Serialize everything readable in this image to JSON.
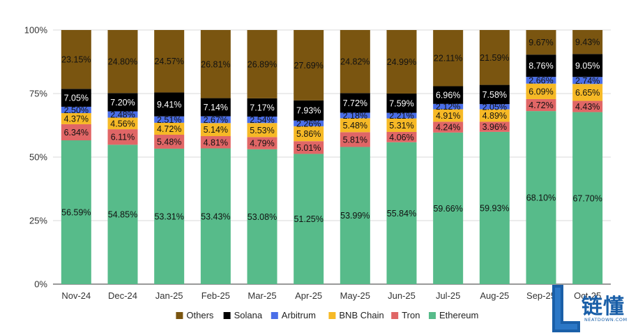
{
  "chart_data": {
    "type": "bar",
    "stacked": true,
    "title": "",
    "xlabel": "",
    "ylabel": "",
    "ylim": [
      0,
      100
    ],
    "y_ticks": [
      "0%",
      "25%",
      "50%",
      "75%",
      "100%"
    ],
    "grid": true,
    "legend_position": "bottom",
    "categories": [
      "Nov-24",
      "Dec-24",
      "Jan-25",
      "Feb-25",
      "Mar-25",
      "Apr-25",
      "May-25",
      "Jun-25",
      "Jul-25",
      "Aug-25",
      "Sep-25",
      "Oct-25"
    ],
    "series": [
      {
        "name": "Ethereum",
        "color": "#57bb8a",
        "values": [
          56.59,
          54.85,
          53.31,
          53.43,
          53.08,
          51.25,
          53.99,
          55.84,
          59.66,
          59.93,
          68.1,
          67.7
        ],
        "labels": [
          "56.59%",
          "54.85%",
          "53.31%",
          "53.43%",
          "53.08%",
          "51.25%",
          "53.99%",
          "55.84%",
          "59.66%",
          "59.93%",
          "68.10%",
          "67.70%"
        ]
      },
      {
        "name": "Tron",
        "color": "#e06666",
        "values": [
          6.34,
          6.11,
          5.48,
          4.81,
          4.79,
          5.01,
          5.81,
          4.06,
          4.24,
          3.96,
          4.72,
          4.43
        ],
        "labels": [
          "6.34%",
          "6.11%",
          "5.48%",
          "4.81%",
          "4.79%",
          "5.01%",
          "5.81%",
          "4.06%",
          "4.24%",
          "3.96%",
          "4.72%",
          "4.43%"
        ]
      },
      {
        "name": "BNB Chain",
        "color": "#f6b926",
        "values": [
          4.37,
          4.56,
          4.72,
          5.14,
          5.53,
          5.86,
          5.48,
          5.31,
          4.91,
          4.89,
          6.09,
          6.65
        ],
        "labels": [
          "4.37%",
          "4.56%",
          "4.72%",
          "5.14%",
          "5.53%",
          "5.86%",
          "5.48%",
          "5.31%",
          "4.91%",
          "4.89%",
          "6.09%",
          "6.65%"
        ]
      },
      {
        "name": "Arbitrum",
        "color": "#4a6ee8",
        "values": [
          2.5,
          2.48,
          2.51,
          2.67,
          2.54,
          2.26,
          2.18,
          2.21,
          2.12,
          2.05,
          2.66,
          2.74
        ],
        "labels": [
          "2.50%",
          "2.48%",
          "2.51%",
          "2.67%",
          "2.54%",
          "2.26%",
          "2.18%",
          "2.21%",
          "2.12%",
          "2.05%",
          "2.66%",
          "2.74%"
        ]
      },
      {
        "name": "Solana",
        "color": "#000000",
        "values": [
          7.05,
          7.2,
          9.41,
          7.14,
          7.17,
          7.93,
          7.72,
          7.59,
          6.96,
          7.58,
          8.76,
          9.05
        ],
        "labels": [
          "7.05%",
          "7.20%",
          "9.41%",
          "7.14%",
          "7.17%",
          "7.93%",
          "7.72%",
          "7.59%",
          "6.96%",
          "7.58%",
          "8.76%",
          "9.05%"
        ]
      },
      {
        "name": "Others",
        "color": "#7a5510",
        "values": [
          23.15,
          24.8,
          24.57,
          26.81,
          26.89,
          27.69,
          24.82,
          24.99,
          22.11,
          21.59,
          9.67,
          9.43
        ],
        "labels": [
          "23.15%",
          "24.80%",
          "24.57%",
          "26.81%",
          "26.89%",
          "27.69%",
          "24.82%",
          "24.99%",
          "22.11%",
          "21.59%",
          "9.67%",
          "9.43%"
        ]
      }
    ],
    "legend_order": [
      "Others",
      "Solana",
      "Arbitrum",
      "BNB Chain",
      "Tron",
      "Ethereum"
    ]
  },
  "watermark": {
    "main_text": "链懂",
    "sub_text": "NEATDOWN.COM",
    "color": "#1a5fa8"
  }
}
